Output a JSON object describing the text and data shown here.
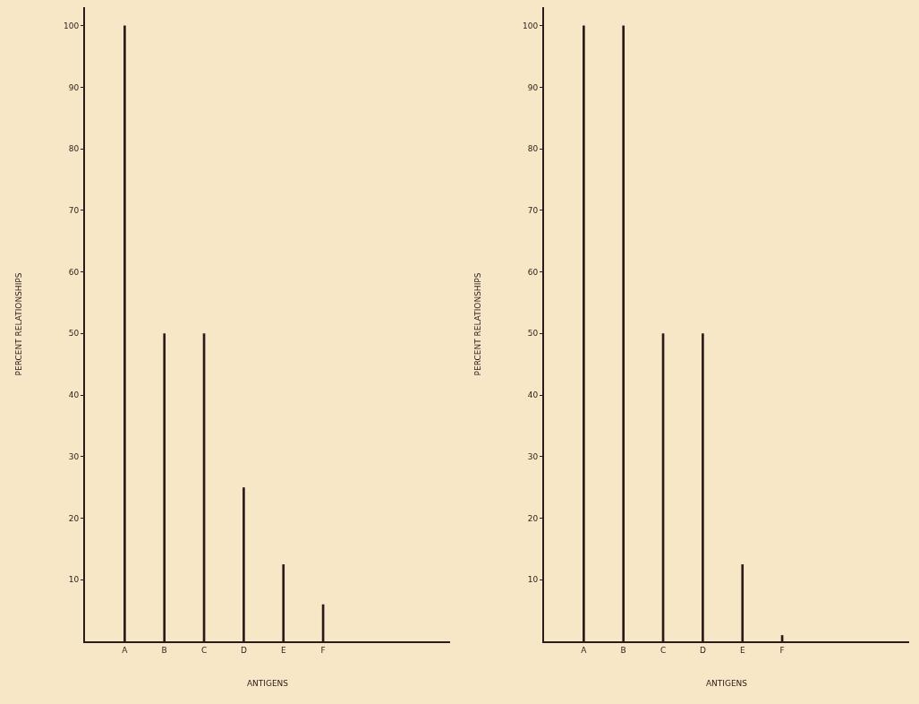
{
  "chart_data": [
    {
      "type": "bar",
      "xlabel": "ANTIGENS",
      "ylabel": "PERCENT RELATIONSHIPS",
      "categories": [
        "A",
        "B",
        "C",
        "D",
        "E",
        "F"
      ],
      "values": [
        100,
        50,
        50,
        25,
        12.5,
        6
      ],
      "color": "#2b1a1a",
      "ylim": [
        0,
        103
      ],
      "yticks": [
        10,
        20,
        30,
        40,
        50,
        60,
        70,
        80,
        90,
        100
      ]
    },
    {
      "type": "bar",
      "xlabel": "ANTIGENS",
      "ylabel": "PERCENT RELATIONSHIPS",
      "categories": [
        "A",
        "B",
        "C",
        "D",
        "E",
        "F"
      ],
      "values": [
        100,
        100,
        50,
        50,
        12.5,
        1
      ],
      "color": "#2b1a1a",
      "ylim": [
        0,
        103
      ],
      "yticks": [
        10,
        20,
        30,
        40,
        50,
        60,
        70,
        80,
        90,
        100
      ]
    }
  ]
}
